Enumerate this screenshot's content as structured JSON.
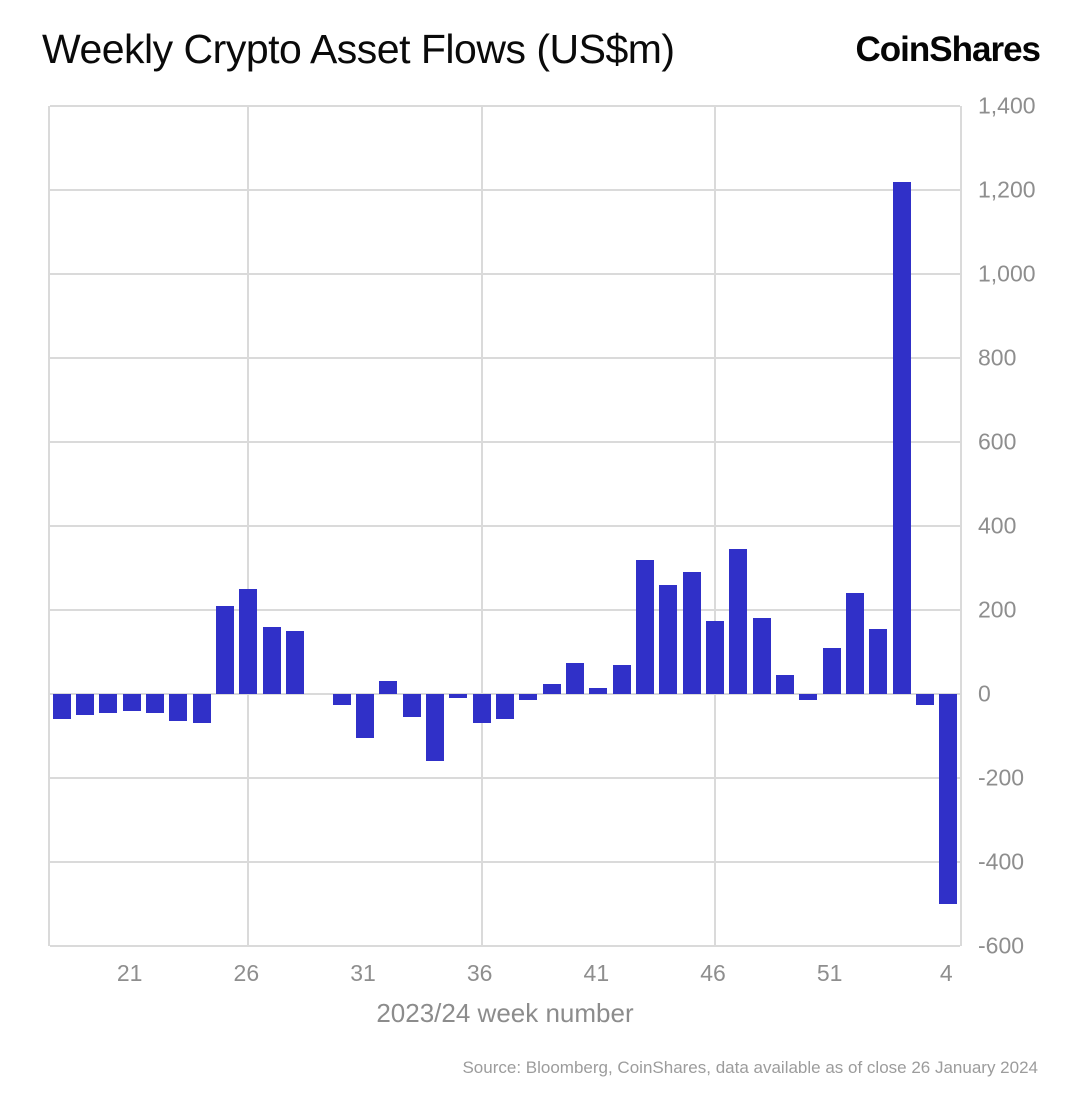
{
  "header": {
    "title": "Weekly Crypto Asset Flows (US$m)",
    "brand": "CoinShares"
  },
  "footer": {
    "source": "Source: Bloomberg, CoinShares, data available as of close 26 January 2024"
  },
  "chart_data": {
    "type": "bar",
    "title": "Weekly Crypto Asset Flows (US$m)",
    "xlabel": "2023/24 week number",
    "ylabel": "",
    "weeks": [
      18,
      19,
      20,
      21,
      22,
      23,
      24,
      25,
      26,
      27,
      28,
      29,
      30,
      31,
      32,
      33,
      34,
      35,
      36,
      37,
      38,
      39,
      40,
      41,
      42,
      43,
      44,
      45,
      46,
      47,
      48,
      49,
      50,
      51,
      52,
      1,
      2,
      3,
      4
    ],
    "values": [
      -60,
      -50,
      -45,
      -40,
      -45,
      -65,
      -70,
      210,
      250,
      160,
      150,
      0,
      -25,
      -105,
      30,
      -55,
      -160,
      -10,
      -70,
      -60,
      -15,
      25,
      75,
      15,
      70,
      320,
      260,
      290,
      175,
      345,
      180,
      45,
      -15,
      110,
      240,
      155,
      1220,
      -25,
      -500
    ],
    "xticks": [
      21,
      26,
      31,
      36,
      41,
      46,
      51,
      4
    ],
    "ytick_values": [
      1400,
      1200,
      1000,
      800,
      600,
      400,
      200,
      0,
      -200,
      -400,
      -600
    ],
    "ytick_labels": [
      "1,400",
      "1,200",
      "1,000",
      "800",
      "600",
      "400",
      "200",
      "0",
      "-200",
      "-400",
      "-600"
    ],
    "ylim": [
      -600,
      1400
    ],
    "vgrid_weeks": [
      26,
      36,
      46
    ],
    "bar_color": "#3030c8",
    "grid_color": "#dadada",
    "axis_text_color": "#8e8e8e",
    "legend": "none"
  }
}
